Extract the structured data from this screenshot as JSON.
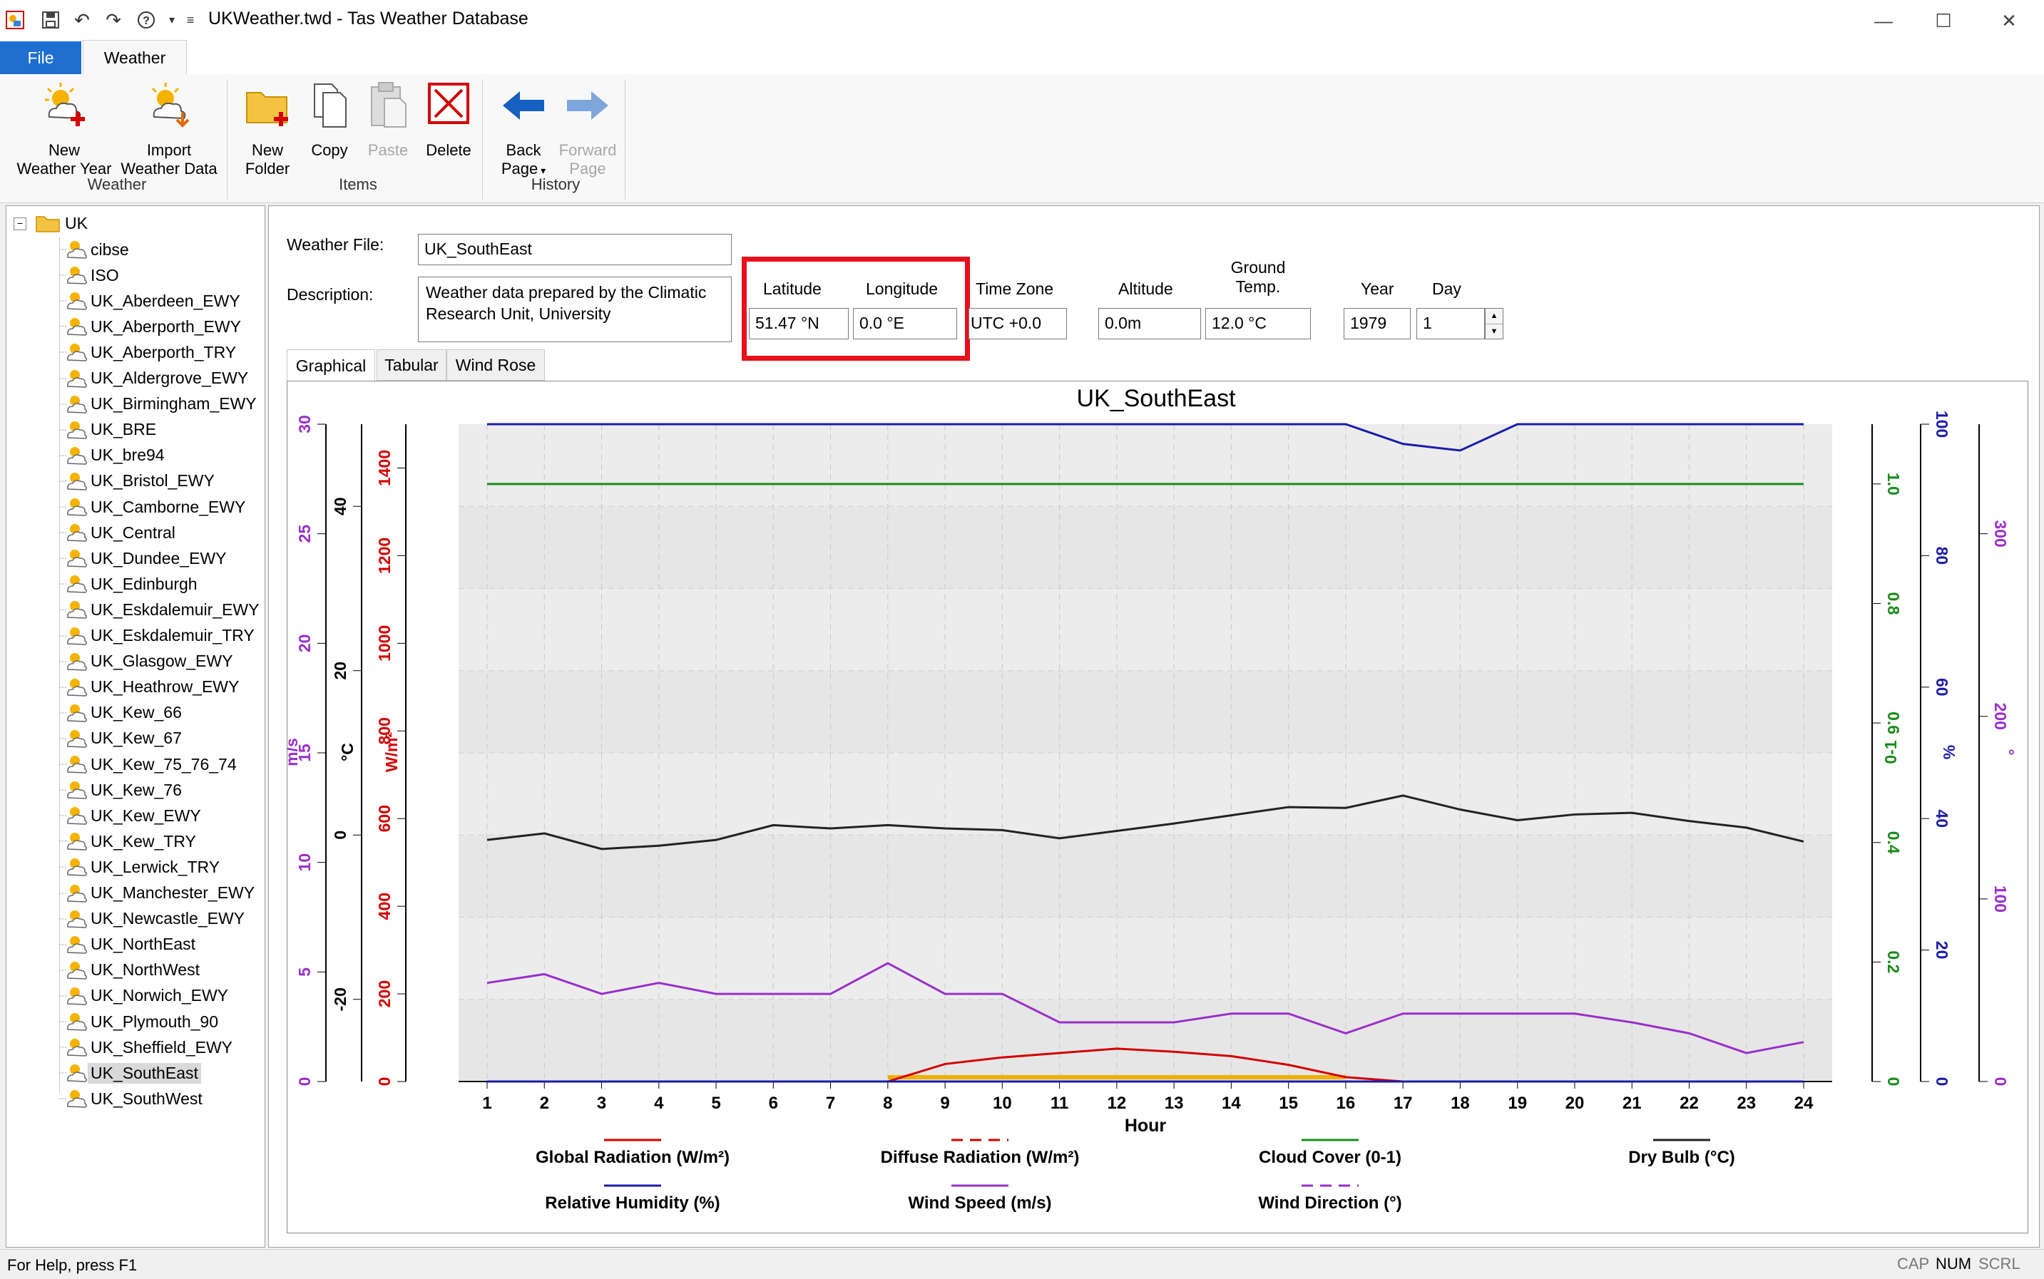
{
  "window": {
    "title": "UKWeather.twd - Tas Weather Database",
    "minimize_icon": "minimize-icon",
    "maximize_icon": "maximize-icon",
    "close_icon": "close-icon"
  },
  "ribbon": {
    "tabs": [
      "File",
      "Weather"
    ],
    "buttons": {
      "new_weather_year": "New\nWeather Year",
      "import_weather_data": "Import\nWeather Data",
      "new_folder": "New\nFolder",
      "copy": "Copy",
      "paste": "Paste",
      "delete": "Delete",
      "back_page": "Back\nPage",
      "forward_page": "Forward\nPage"
    },
    "groups": {
      "weather": "Weather",
      "items": "Items",
      "history": "History"
    }
  },
  "tree": {
    "root": "UK",
    "items": [
      "cibse",
      "ISO",
      "UK_Aberdeen_EWY",
      "UK_Aberporth_EWY",
      "UK_Aberporth_TRY",
      "UK_Aldergrove_EWY",
      "UK_Birmingham_EWY",
      "UK_BRE",
      "UK_bre94",
      "UK_Bristol_EWY",
      "UK_Camborne_EWY",
      "UK_Central",
      "UK_Dundee_EWY",
      "UK_Edinburgh",
      "UK_Eskdalemuir_EWY",
      "UK_Eskdalemuir_TRY",
      "UK_Glasgow_EWY",
      "UK_Heathrow_EWY",
      "UK_Kew_66",
      "UK_Kew_67",
      "UK_Kew_75_76_74",
      "UK_Kew_76",
      "UK_Kew_EWY",
      "UK_Kew_TRY",
      "UK_Lerwick_TRY",
      "UK_Manchester_EWY",
      "UK_Newcastle_EWY",
      "UK_NorthEast",
      "UK_NorthWest",
      "UK_Norwich_EWY",
      "UK_Plymouth_90",
      "UK_Sheffield_EWY",
      "UK_SouthEast",
      "UK_SouthWest"
    ],
    "selected": "UK_SouthEast"
  },
  "form": {
    "weather_file_label": "Weather File:",
    "weather_file": "UK_SouthEast",
    "description_label": "Description:",
    "description": "Weather data prepared by the Climatic Research Unit, University",
    "latitude_label": "Latitude",
    "latitude": "51.47 °N",
    "longitude_label": "Longitude",
    "longitude": "0.0 °E",
    "timezone_label": "Time Zone",
    "timezone": "UTC +0.0",
    "altitude_label": "Altitude",
    "altitude": "0.0m",
    "ground_temp_label_1": "Ground",
    "ground_temp_label_2": "Temp.",
    "ground_temp": "12.0 °C",
    "year_label": "Year",
    "year": "1979",
    "day_label": "Day",
    "day": "1"
  },
  "view_tabs": [
    "Graphical",
    "Tabular",
    "Wind Rose"
  ],
  "status": {
    "help": "For Help, press F1",
    "cap": "CAP",
    "num": "NUM",
    "scrl": "SCRL"
  },
  "colors": {
    "global_radiation": "#d40000",
    "diffuse_radiation": "#d40000",
    "cloud_cover": "#1a8c1a",
    "dry_bulb": "#222222",
    "relative_humidity": "#1c1ca8",
    "wind_speed": "#9a2fc9",
    "wind_direction": "#9a2fc9",
    "highlight": "#e8101a"
  },
  "chart_data": {
    "type": "line",
    "title": "UK_SouthEast",
    "xlabel": "Hour",
    "x": [
      1,
      2,
      3,
      4,
      5,
      6,
      7,
      8,
      9,
      10,
      11,
      12,
      13,
      14,
      15,
      16,
      17,
      18,
      19,
      20,
      21,
      22,
      23,
      24
    ],
    "axes": {
      "wind_speed": {
        "unit": "m/s",
        "range": [
          0,
          30
        ],
        "ticks": [
          0,
          5,
          10,
          15,
          20,
          25,
          30
        ]
      },
      "temperature": {
        "unit": "°C",
        "range": [
          -30,
          50
        ],
        "ticks": [
          -20,
          0,
          20,
          40
        ]
      },
      "radiation": {
        "unit": "W/m²",
        "range": [
          0,
          1500
        ],
        "ticks": [
          0,
          200,
          400,
          600,
          800,
          1000,
          1200,
          1400
        ]
      },
      "cloud_cover": {
        "unit": "0-1",
        "range": [
          0,
          1.1
        ],
        "ticks": [
          "0",
          "0.2",
          "0.4",
          "0.6",
          "0.8",
          "1.0"
        ]
      },
      "humidity": {
        "unit": "%",
        "range": [
          0,
          100
        ],
        "ticks": [
          0,
          20,
          40,
          60,
          80,
          100
        ]
      },
      "wind_direction": {
        "unit": "°",
        "range": [
          0,
          360
        ],
        "ticks": [
          0,
          100,
          200,
          300
        ]
      }
    },
    "series": [
      {
        "name": "Global Radiation (W/m²)",
        "axis": "radiation",
        "values": [
          0,
          0,
          0,
          0,
          0,
          0,
          0,
          0,
          40,
          55,
          65,
          75,
          68,
          58,
          38,
          10,
          0,
          0,
          0,
          0,
          0,
          0,
          0,
          0
        ]
      },
      {
        "name": "Diffuse Radiation (W/m²)",
        "axis": "radiation",
        "values": [
          0,
          0,
          0,
          0,
          0,
          0,
          0,
          0,
          40,
          55,
          65,
          75,
          68,
          58,
          38,
          10,
          0,
          0,
          0,
          0,
          0,
          0,
          0,
          0
        ]
      },
      {
        "name": "Cloud Cover (0-1)",
        "axis": "cloud_cover",
        "values": [
          1,
          1,
          1,
          1,
          1,
          1,
          1,
          1,
          1,
          1,
          1,
          1,
          1,
          1,
          1,
          1,
          1,
          1,
          1,
          1,
          1,
          1,
          1,
          1
        ]
      },
      {
        "name": "Dry Bulb (°C)",
        "axis": "temperature",
        "values": [
          -0.6,
          0.2,
          -1.7,
          -1.3,
          -0.6,
          1.2,
          0.8,
          1.2,
          0.8,
          0.6,
          -0.4,
          0.5,
          1.4,
          2.4,
          3.4,
          3.3,
          4.8,
          3.1,
          1.8,
          2.5,
          2.7,
          1.7,
          0.9,
          -0.8
        ]
      },
      {
        "name": "Relative Humidity (%)",
        "axis": "humidity",
        "values": [
          100,
          100,
          100,
          100,
          100,
          100,
          100,
          100,
          100,
          100,
          100,
          100,
          100,
          100,
          100,
          100,
          97,
          96,
          100,
          100,
          100,
          100,
          100,
          100
        ]
      },
      {
        "name": "Wind Speed (m/s)",
        "axis": "wind_speed",
        "values": [
          4.5,
          4.9,
          4,
          4.5,
          4,
          4,
          4,
          5.4,
          4,
          4,
          2.7,
          2.7,
          2.7,
          3.1,
          3.1,
          2.2,
          3.1,
          3.1,
          3.1,
          3.1,
          2.7,
          2.2,
          1.3,
          1.8
        ]
      },
      {
        "name": "Wind Direction (°)",
        "axis": "wind_direction",
        "values": [
          0,
          0,
          0,
          0,
          0,
          0,
          0,
          0,
          0,
          0,
          0,
          0,
          0,
          0,
          0,
          0,
          0,
          0,
          0,
          0,
          0,
          0,
          0,
          0
        ]
      }
    ],
    "grid": true,
    "legend_position": "bottom"
  }
}
